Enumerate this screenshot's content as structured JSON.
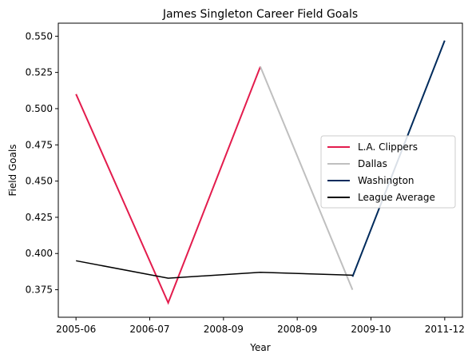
{
  "chart_data": {
    "type": "line",
    "title": "James Singleton  Career Field Goals",
    "xlabel": "Year",
    "ylabel": "Field Goals",
    "categories": [
      "2005-06",
      "2006-07",
      "2008-09",
      "2008-09",
      "2009-10",
      "2011-12"
    ],
    "x_ticks": [
      {
        "x": 0,
        "label": "2005-06"
      },
      {
        "x": 1,
        "label": "2006-07"
      },
      {
        "x": 2,
        "label": "2008-09"
      },
      {
        "x": 3,
        "label": "2008-09"
      },
      {
        "x": 4,
        "label": "2009-10"
      },
      {
        "x": 5,
        "label": "2011-12"
      }
    ],
    "xlim": [
      -0.24,
      5.24
    ],
    "ylim": [
      0.356,
      0.559
    ],
    "y_ticks": [
      "0.375",
      "0.400",
      "0.425",
      "0.450",
      "0.475",
      "0.500",
      "0.525",
      "0.550"
    ],
    "grid": false,
    "legend_position": "center-right",
    "series": [
      {
        "name": "L.A. Clippers",
        "color": "#e31c4d",
        "points": [
          [
            0,
            0.51
          ],
          [
            1.25,
            0.366
          ],
          [
            2.5,
            0.529
          ]
        ]
      },
      {
        "name": "Dallas",
        "color": "#bfbfbf",
        "points": [
          [
            2.5,
            0.529
          ],
          [
            3.75,
            0.375
          ]
        ]
      },
      {
        "name": "Washington",
        "color": "#002b5c",
        "points": [
          [
            3.75,
            0.384
          ],
          [
            5,
            0.547
          ]
        ]
      },
      {
        "name": "League Average",
        "color": "#000000",
        "points": [
          [
            0,
            0.395
          ],
          [
            1.25,
            0.383
          ],
          [
            2.5,
            0.387
          ],
          [
            3.75,
            0.385
          ]
        ]
      }
    ]
  }
}
